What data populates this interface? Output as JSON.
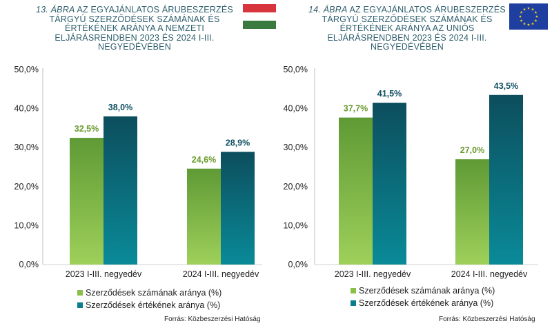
{
  "chart_data": [
    {
      "type": "bar",
      "title_number": "13. ÁBRA",
      "title": "AZ EGYAJÁNLATOS ÁRUBESZERZÉS TÁRGYÚ SZERZŐDÉSEK SZÁMÁNAK ÉS ÉRTÉKÉNEK ARÁNYA A NEMZETI ELJÁRÁSRENDBEN 2023 ÉS 2024 I-III. NEGYEDÉVÉBEN",
      "categories": [
        "2023 I-III. negyedév",
        "2024 I-III. negyedév"
      ],
      "series": [
        {
          "name": "Szerződések számának aránya (%)",
          "values": [
            32.5,
            24.6
          ],
          "labels": [
            "32,5%",
            "24,6%"
          ],
          "color": "#8cbf4a"
        },
        {
          "name": "Szerződések értékének aránya (%)",
          "values": [
            38.0,
            28.9
          ],
          "labels": [
            "38,0%",
            "28,9%"
          ],
          "color": "#0b7e8e"
        }
      ],
      "yticks": [
        "0,0%",
        "10,0%",
        "20,0%",
        "30,0%",
        "40,0%",
        "50,0%"
      ],
      "ylim": [
        0,
        50
      ],
      "legend": "bottom-left",
      "source": "Forrás: Közbeszerzési Hatóság",
      "flag_icon": "hungary-flag-icon"
    },
    {
      "type": "bar",
      "title_number": "14. ÁBRA",
      "title": "AZ EGYAJÁNLATOS ÁRUBESZERZÉS TÁRGYÚ SZERZŐDÉSEK SZÁMÁNAK ÉS ÉRTÉKÉNEK ARÁNYA AZ UNIÓS ELJÁRÁSRENDBEN 2023 ÉS 2024 I-III. NEGYEDÉVÉBEN",
      "categories": [
        "2023 I-III. negyedév",
        "2024 I-III. negyedév"
      ],
      "series": [
        {
          "name": "Szerződések számának aránya (%)",
          "values": [
            37.7,
            27.0
          ],
          "labels": [
            "37,7%",
            "27,0%"
          ],
          "color": "#8cbf4a"
        },
        {
          "name": "Szerződések értékének aránya (%)",
          "values": [
            41.5,
            43.5
          ],
          "labels": [
            "41,5%",
            "43,5%"
          ],
          "color": "#0b7e8e"
        }
      ],
      "yticks": [
        "0,0%",
        "10,0%",
        "20,0%",
        "30,0%",
        "40,0%",
        "50,0%"
      ],
      "ylim": [
        0,
        50
      ],
      "legend": "bottom-left",
      "source": "Forrás: Közbeszerzési Hatóság",
      "flag_icon": "eu-flag-icon"
    }
  ],
  "colors": {
    "title": "#2e5e6e",
    "green_label": "#6a9a2e",
    "teal_label": "#0e4f61",
    "axis_line": "#bfbfbf",
    "grid_line": "#d0d0d0"
  }
}
